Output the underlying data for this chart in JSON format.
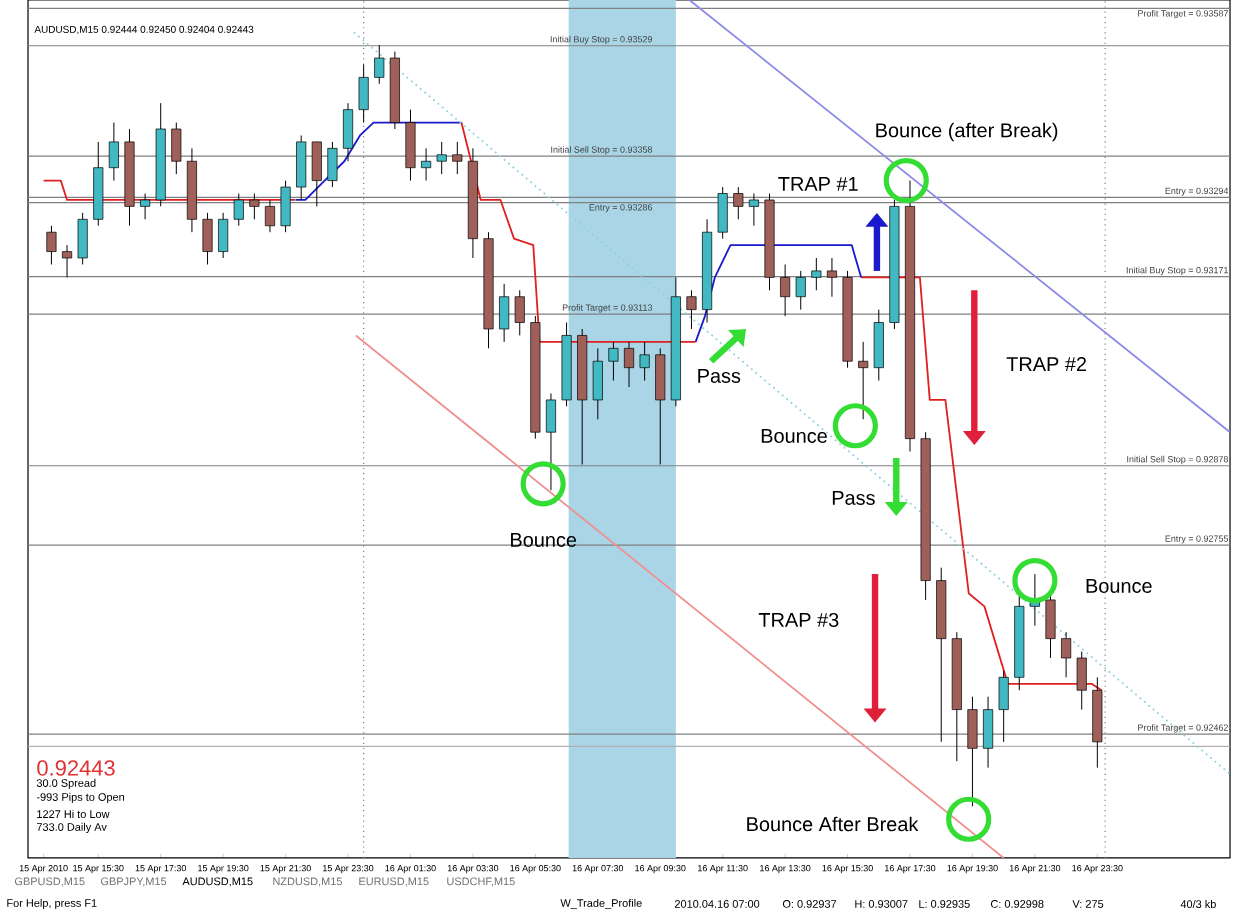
{
  "chart_data": {
    "type": "candlestick",
    "x": [
      "2010-04-15T14:00",
      "2010-04-15T14:30",
      "2010-04-15T15:00",
      "2010-04-15T15:30",
      "2010-04-15T16:00",
      "2010-04-15T16:30",
      "2010-04-15T17:00",
      "2010-04-15T17:30",
      "2010-04-15T18:00",
      "2010-04-15T18:30",
      "2010-04-15T19:00",
      "2010-04-15T19:30",
      "2010-04-15T20:00",
      "2010-04-15T20:30",
      "2010-04-15T21:00",
      "2010-04-15T21:30",
      "2010-04-15T22:00",
      "2010-04-15T22:30",
      "2010-04-15T23:00",
      "2010-04-15T23:30",
      "2010-04-16T00:00",
      "2010-04-16T00:30",
      "2010-04-16T01:00",
      "2010-04-16T01:30",
      "2010-04-16T02:00",
      "2010-04-16T02:30",
      "2010-04-16T03:00",
      "2010-04-16T03:30",
      "2010-04-16T04:00",
      "2010-04-16T04:30",
      "2010-04-16T05:00",
      "2010-04-16T05:30",
      "2010-04-16T06:00",
      "2010-04-16T06:30",
      "2010-04-16T07:00",
      "2010-04-16T07:30",
      "2010-04-16T08:00",
      "2010-04-16T08:30",
      "2010-04-16T09:00",
      "2010-04-16T09:30",
      "2010-04-16T10:00",
      "2010-04-16T10:30",
      "2010-04-16T11:00",
      "2010-04-16T11:30",
      "2010-04-16T12:00",
      "2010-04-16T12:30",
      "2010-04-16T13:00",
      "2010-04-16T13:30",
      "2010-04-16T14:00",
      "2010-04-16T14:30",
      "2010-04-16T15:00",
      "2010-04-16T15:30",
      "2010-04-16T16:00",
      "2010-04-16T16:30",
      "2010-04-16T17:00",
      "2010-04-16T17:30",
      "2010-04-16T18:00",
      "2010-04-16T18:30",
      "2010-04-16T19:00",
      "2010-04-16T19:30",
      "2010-04-16T20:00",
      "2010-04-16T20:30",
      "2010-04-16T21:00",
      "2010-04-16T21:30",
      "2010-04-16T22:00",
      "2010-04-16T22:30",
      "2010-04-16T23:00",
      "2010-04-16T23:30"
    ],
    "ohlc": [
      [
        0.9324,
        0.9325,
        0.9319,
        0.9321
      ],
      [
        0.9321,
        0.9322,
        0.9317,
        0.932
      ],
      [
        0.932,
        0.9327,
        0.9319,
        0.9326
      ],
      [
        0.9326,
        0.9338,
        0.9325,
        0.9334
      ],
      [
        0.9334,
        0.9341,
        0.9332,
        0.9338
      ],
      [
        0.9338,
        0.934,
        0.9325,
        0.9328
      ],
      [
        0.9328,
        0.933,
        0.9326,
        0.9329
      ],
      [
        0.9329,
        0.9344,
        0.9328,
        0.934
      ],
      [
        0.934,
        0.9341,
        0.9333,
        0.9335
      ],
      [
        0.9335,
        0.9337,
        0.9324,
        0.9326
      ],
      [
        0.9326,
        0.9327,
        0.9319,
        0.9321
      ],
      [
        0.9321,
        0.9327,
        0.932,
        0.9326
      ],
      [
        0.9326,
        0.933,
        0.9325,
        0.9329
      ],
      [
        0.9329,
        0.933,
        0.9326,
        0.9328
      ],
      [
        0.9328,
        0.9329,
        0.9324,
        0.9325
      ],
      [
        0.9325,
        0.9332,
        0.9324,
        0.9331
      ],
      [
        0.9331,
        0.9339,
        0.9329,
        0.9338
      ],
      [
        0.9338,
        0.9338,
        0.9328,
        0.9332
      ],
      [
        0.9332,
        0.9338,
        0.9331,
        0.9337
      ],
      [
        0.9337,
        0.9344,
        0.9335,
        0.9343
      ],
      [
        0.9343,
        0.935,
        0.9341,
        0.9348
      ],
      [
        0.9348,
        0.9353,
        0.9347,
        0.9351
      ],
      [
        0.9351,
        0.9352,
        0.934,
        0.9341
      ],
      [
        0.9341,
        0.9343,
        0.9332,
        0.9334
      ],
      [
        0.9334,
        0.9337,
        0.9332,
        0.9335
      ],
      [
        0.9335,
        0.9338,
        0.9333,
        0.9336
      ],
      [
        0.9336,
        0.9338,
        0.9333,
        0.9335
      ],
      [
        0.9335,
        0.9337,
        0.932,
        0.9323
      ],
      [
        0.9323,
        0.9324,
        0.9306,
        0.9309
      ],
      [
        0.9309,
        0.9316,
        0.9307,
        0.9314
      ],
      [
        0.9314,
        0.9315,
        0.9308,
        0.931
      ],
      [
        0.931,
        0.9311,
        0.9292,
        0.9293
      ],
      [
        0.9293,
        0.9299,
        0.9284,
        0.9298
      ],
      [
        0.9298,
        0.931,
        0.9297,
        0.9308
      ],
      [
        0.9308,
        0.9309,
        0.9288,
        0.9298
      ],
      [
        0.9298,
        0.9306,
        0.9295,
        0.9304
      ],
      [
        0.9304,
        0.9307,
        0.9301,
        0.9306
      ],
      [
        0.9306,
        0.9307,
        0.93,
        0.9303
      ],
      [
        0.9303,
        0.9307,
        0.9301,
        0.9305
      ],
      [
        0.9305,
        0.9306,
        0.9288,
        0.9298
      ],
      [
        0.9298,
        0.9317,
        0.9297,
        0.9314
      ],
      [
        0.9314,
        0.9315,
        0.9309,
        0.9312
      ],
      [
        0.9312,
        0.9326,
        0.931,
        0.9324
      ],
      [
        0.9324,
        0.9331,
        0.9323,
        0.933
      ],
      [
        0.933,
        0.9331,
        0.9326,
        0.9328
      ],
      [
        0.9328,
        0.933,
        0.9325,
        0.9329
      ],
      [
        0.9329,
        0.933,
        0.9315,
        0.9317
      ],
      [
        0.9317,
        0.9319,
        0.9311,
        0.9314
      ],
      [
        0.9314,
        0.9318,
        0.9312,
        0.9317
      ],
      [
        0.9317,
        0.932,
        0.9315,
        0.9318
      ],
      [
        0.9318,
        0.932,
        0.9314,
        0.9317
      ],
      [
        0.9317,
        0.9318,
        0.9303,
        0.9304
      ],
      [
        0.9304,
        0.9307,
        0.9295,
        0.9303
      ],
      [
        0.9303,
        0.9312,
        0.9301,
        0.931
      ],
      [
        0.931,
        0.9329,
        0.9309,
        0.9328
      ],
      [
        0.9328,
        0.9332,
        0.929,
        0.9292
      ],
      [
        0.9292,
        0.9293,
        0.9267,
        0.927
      ],
      [
        0.927,
        0.9272,
        0.9245,
        0.9261
      ],
      [
        0.9261,
        0.9262,
        0.9242,
        0.925
      ],
      [
        0.925,
        0.9252,
        0.9235,
        0.9244
      ],
      [
        0.9244,
        0.9252,
        0.9241,
        0.925
      ],
      [
        0.925,
        0.9256,
        0.9245,
        0.9255
      ],
      [
        0.9255,
        0.9268,
        0.9253,
        0.9266
      ],
      [
        0.9266,
        0.9271,
        0.9263,
        0.9267
      ],
      [
        0.9267,
        0.9268,
        0.9258,
        0.9261
      ],
      [
        0.9261,
        0.9262,
        0.9255,
        0.9258
      ],
      [
        0.9258,
        0.9259,
        0.925,
        0.9253
      ],
      [
        0.9253,
        0.9255,
        0.9241,
        0.9245
      ]
    ],
    "series": [
      {
        "type": "line",
        "color": "#e02020",
        "x": [
          "2010-04-15T13:45",
          "2010-04-15T14:18",
          "2010-04-15T14:30",
          "2010-04-15T21:48",
          "2010-04-16T00:00",
          "2010-04-16T03:08",
          "2010-04-16T03:45",
          "2010-04-16T04:23",
          "2010-04-16T04:49",
          "2010-04-16T05:26",
          "2010-04-16T05:38",
          "2010-04-16T10:38",
          "2010-04-16T13:00",
          "2010-04-16T15:56",
          "2010-04-16T17:49",
          "2010-04-16T18:08",
          "2010-04-16T18:38",
          "2010-04-16T19:11",
          "2010-04-16T19:23",
          "2010-04-16T19:53",
          "2010-04-16T20:38",
          "2010-04-16T23:19",
          "2010-04-16T23:38"
        ],
        "values": [
          0.9332,
          0.9332,
          0.9329,
          0.9329,
          null,
          0.9341,
          0.9329,
          0.9329,
          0.9323,
          0.9322,
          0.9307,
          0.9307,
          null,
          0.9317,
          0.9317,
          0.9298,
          0.9298,
          0.9276,
          0.9268,
          0.9266,
          0.9254,
          0.9254,
          0.9253
        ]
      },
      {
        "type": "line",
        "color": "#1a1acc",
        "x": [
          "2010-04-15T21:49",
          "2010-04-15T22:08",
          "2010-04-15T22:45",
          "2010-04-15T23:23",
          "2010-04-15T23:53",
          "2010-04-16T00:19",
          "2010-04-16T03:00",
          "2010-04-16T03:08",
          "2010-04-16T06:00",
          "2010-04-16T10:38",
          "2010-04-16T10:56",
          "2010-04-16T11:15",
          "2010-04-16T11:45",
          "2010-04-16T12:11",
          "2010-04-16T15:38",
          "2010-04-16T15:56"
        ],
        "values": [
          0.9329,
          0.9329,
          0.9332,
          0.9335,
          0.9339,
          0.9341,
          0.9341,
          0.9341,
          null,
          0.9307,
          0.9311,
          0.9317,
          0.9322,
          0.9322,
          0.9322,
          0.9317
        ]
      },
      {
        "type": "line",
        "color": "#8c8ce6",
        "x": [
          "2010-04-16T10:26",
          "2010-04-17T03:45"
        ],
        "values": [
          0.936,
          0.9293
        ]
      },
      {
        "type": "line",
        "color": "#f09090",
        "x": [
          "2010-04-15T23:45",
          "2010-04-16T20:30"
        ],
        "values": [
          0.9308,
          0.9227
        ]
      },
      {
        "type": "line",
        "color": "#8fd0e0",
        "line_style": "dotted",
        "x": [
          "2010-04-15T23:41",
          "2010-04-17T03:45"
        ],
        "values": [
          0.9355,
          0.924
        ]
      }
    ],
    "xlim": [
      "2010-04-15T13:15",
      "2010-04-17T03:45"
    ],
    "ylim": [
      0.9227,
      0.936
    ],
    "xticks": [
      {
        "value": "2010-04-15T13:45",
        "label": "15 Apr 2010"
      },
      {
        "value": "2010-04-15T15:30",
        "label": "15 Apr 15:30"
      },
      {
        "value": "2010-04-15T17:30",
        "label": "15 Apr 17:30"
      },
      {
        "value": "2010-04-15T19:30",
        "label": "15 Apr 19:30"
      },
      {
        "value": "2010-04-15T21:30",
        "label": "15 Apr 21:30"
      },
      {
        "value": "2010-04-15T23:30",
        "label": "15 Apr 23:30"
      },
      {
        "value": "2010-04-16T01:30",
        "label": "16 Apr 01:30"
      },
      {
        "value": "2010-04-16T03:30",
        "label": "16 Apr 03:30"
      },
      {
        "value": "2010-04-16T05:30",
        "label": "16 Apr 05:30"
      },
      {
        "value": "2010-04-16T07:30",
        "label": "16 Apr 07:30"
      },
      {
        "value": "2010-04-16T09:30",
        "label": "16 Apr 09:30"
      },
      {
        "value": "2010-04-16T11:30",
        "label": "16 Apr 11:30"
      },
      {
        "value": "2010-04-16T13:30",
        "label": "16 Apr 13:30"
      },
      {
        "value": "2010-04-16T15:30",
        "label": "16 Apr 15:30"
      },
      {
        "value": "2010-04-16T17:30",
        "label": "16 Apr 17:30"
      },
      {
        "value": "2010-04-16T19:30",
        "label": "16 Apr 19:30"
      },
      {
        "value": "2010-04-16T21:30",
        "label": "16 Apr 21:30"
      },
      {
        "value": "2010-04-16T23:30",
        "label": "16 Apr 23:30"
      }
    ],
    "tick_labels": "x",
    "ref_lines": [
      {
        "axis": "y",
        "value": 0.93587,
        "label": "Profit Target = 0.93587",
        "color": "#808080"
      },
      {
        "axis": "y",
        "value": 0.93529,
        "label": "Initial Buy Stop = 0.93529",
        "color": "#808080"
      },
      {
        "axis": "y",
        "value": 0.93358,
        "label": "Initial Sell Stop = 0.93358",
        "color": "#808080"
      },
      {
        "axis": "y",
        "value": 0.93286,
        "label": "Entry = 0.93286",
        "color": "#808080"
      },
      {
        "axis": "y",
        "value": 0.93113,
        "label": "Profit Target = 0.93113",
        "color": "#808080"
      },
      {
        "axis": "y",
        "value": 0.93294,
        "label": "Entry = 0.93294",
        "color": "#808080"
      },
      {
        "axis": "y",
        "value": 0.93171,
        "label": "Initial Buy Stop = 0.93171",
        "color": "#808080"
      },
      {
        "axis": "y",
        "value": 0.92878,
        "label": "Initial Sell Stop = 0.92878",
        "color": "#808080"
      },
      {
        "axis": "y",
        "value": 0.92755,
        "label": "Entry = 0.92755",
        "color": "#808080"
      },
      {
        "axis": "y",
        "value": 0.92462,
        "label": "Profit Target = 0.92462",
        "color": "#808080"
      },
      {
        "axis": "y",
        "value": 0.92443,
        "color": "#b0b0b0"
      },
      {
        "axis": "x",
        "value": "2010-04-16T00:00",
        "color": "#808080",
        "line_style": "dotted"
      },
      {
        "axis": "x",
        "value": "2010-04-16T23:45",
        "color": "#808080",
        "line_style": "dotted"
      }
    ],
    "bands": [
      {
        "axis": "x",
        "from": "2010-04-16T06:34",
        "to": "2010-04-16T10:00",
        "color": "#a9d5e6"
      }
    ],
    "annotations": [
      "Bounce",
      "Pass",
      "Bounce",
      "Pass",
      "TRAP #1",
      "Bounce (after Break)",
      "TRAP #2",
      "TRAP #3",
      "Bounce",
      "Bounce After Break",
      "AUDUSD,M15 0.92444 0.92450 0.92404 0.92443",
      "0.92443",
      "30.0 Spread",
      "-993 Pips to Open",
      "1227 Hi to Low",
      "733.0 Daily Av",
      "GBPUSD,M15",
      "GBPJPY,M15",
      "AUDUSD,M15",
      "NZDUSD,M15",
      "EURUSD,M15",
      "USDCHF,M15",
      "For Help, press F1",
      "W_Trade_Profile",
      "2010.04.16 07:00",
      "O: 0.92937",
      "H: 0.93007",
      "L: 0.92935",
      "C: 0.92998",
      "V: 275",
      "40/3 kb"
    ]
  }
}
